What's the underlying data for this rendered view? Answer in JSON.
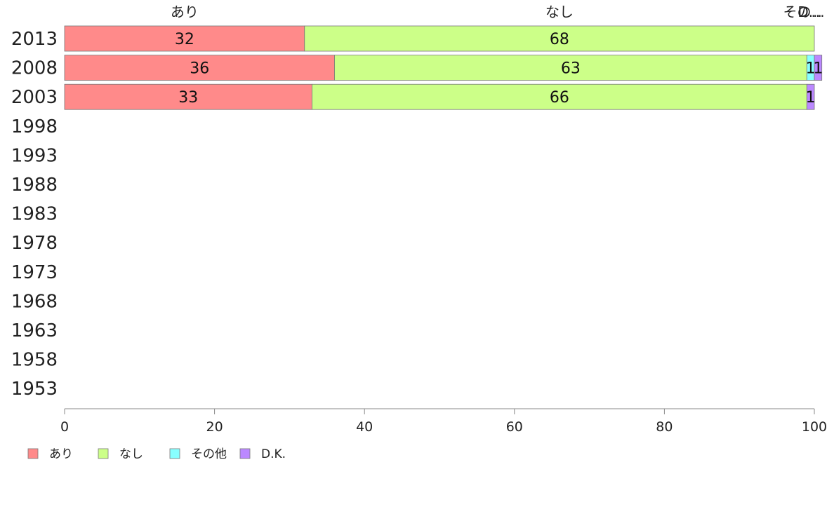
{
  "chart_data": {
    "type": "bar",
    "orientation": "horizontal",
    "stacked": true,
    "categories": [
      "2013",
      "2008",
      "2003",
      "1998",
      "1993",
      "1988",
      "1983",
      "1978",
      "1973",
      "1968",
      "1963",
      "1958",
      "1953"
    ],
    "series": [
      {
        "name": "あり",
        "color": "#ff8a8a",
        "values": [
          32,
          36,
          33,
          null,
          null,
          null,
          null,
          null,
          null,
          null,
          null,
          null,
          null
        ]
      },
      {
        "name": "なし",
        "color": "#ccff88",
        "values": [
          68,
          63,
          66,
          null,
          null,
          null,
          null,
          null,
          null,
          null,
          null,
          null,
          null
        ]
      },
      {
        "name": "その他",
        "color": "#88ffff",
        "values": [
          0,
          1,
          0,
          null,
          null,
          null,
          null,
          null,
          null,
          null,
          null,
          null,
          null
        ]
      },
      {
        "name": "D.K.",
        "color": "#bb88ff",
        "values": [
          0,
          1,
          1,
          null,
          null,
          null,
          null,
          null,
          null,
          null,
          null,
          null,
          null
        ]
      }
    ],
    "top_labels": [
      "あり",
      "なし",
      "その...",
      "D..."
    ],
    "xlim": [
      0,
      100
    ],
    "xticks": [
      0,
      20,
      40,
      60,
      80,
      100
    ],
    "grid": false,
    "legend_position": "bottom-left"
  }
}
